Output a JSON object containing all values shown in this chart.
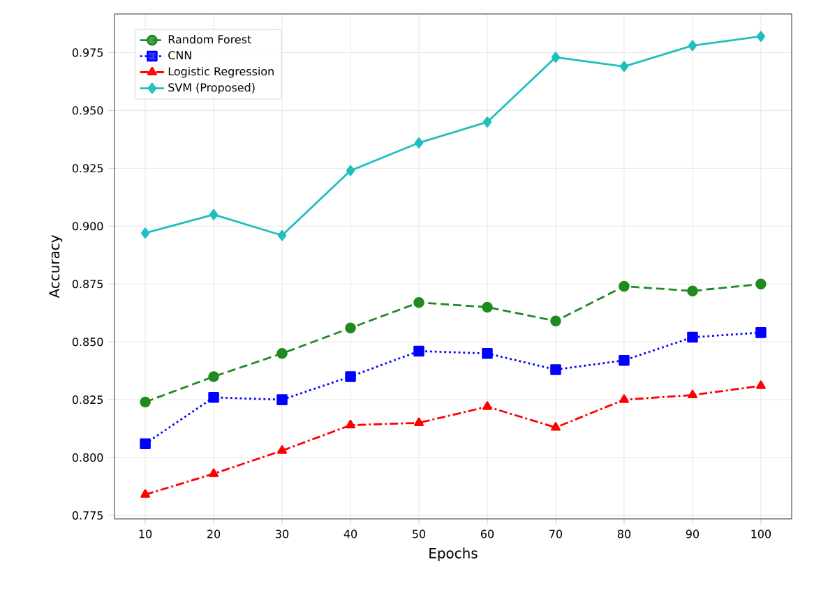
{
  "chart_data": {
    "type": "line",
    "xlabel": "Epochs",
    "ylabel": "Accuracy",
    "x": [
      10,
      20,
      30,
      40,
      50,
      60,
      70,
      80,
      90,
      100
    ],
    "xlim": [
      5.5,
      104.5
    ],
    "xticks": [
      10,
      20,
      30,
      40,
      50,
      60,
      70,
      80,
      90,
      100
    ],
    "ylim": [
      0.7735,
      0.9917
    ],
    "yticks": [
      0.775,
      {
        "value": 0.8,
        "label": "0.800"
      },
      0.825,
      {
        "value": 0.85,
        "label": "0.850"
      },
      0.875,
      {
        "value": 0.9,
        "label": "0.900"
      },
      0.925,
      {
        "value": 0.95,
        "label": "0.950"
      },
      0.975
    ],
    "grid": true,
    "legend": "top left",
    "series": [
      {
        "name": "Random Forest",
        "color": "#1f8a1f",
        "marker": "circle",
        "line_style": "dashed",
        "values": [
          0.824,
          0.835,
          0.845,
          0.856,
          0.867,
          0.865,
          0.859,
          0.874,
          0.872,
          0.875
        ]
      },
      {
        "name": "CNN",
        "color": "#0000ff",
        "marker": "square",
        "line_style": "dotted",
        "values": [
          0.806,
          0.826,
          0.825,
          0.835,
          0.846,
          0.845,
          0.838,
          0.842,
          0.852,
          0.854
        ]
      },
      {
        "name": "Logistic Regression",
        "color": "#ff0000",
        "marker": "triangle",
        "line_style": "dashdot",
        "values": [
          0.784,
          0.793,
          0.803,
          0.814,
          0.815,
          0.822,
          0.813,
          0.825,
          0.827,
          0.831
        ]
      },
      {
        "name": "SVM (Proposed)",
        "color": "#1fbfbf",
        "marker": "diamond",
        "line_style": "solid",
        "values": [
          0.897,
          0.905,
          0.896,
          0.924,
          0.936,
          0.945,
          0.973,
          0.969,
          0.978,
          0.982
        ]
      }
    ]
  }
}
